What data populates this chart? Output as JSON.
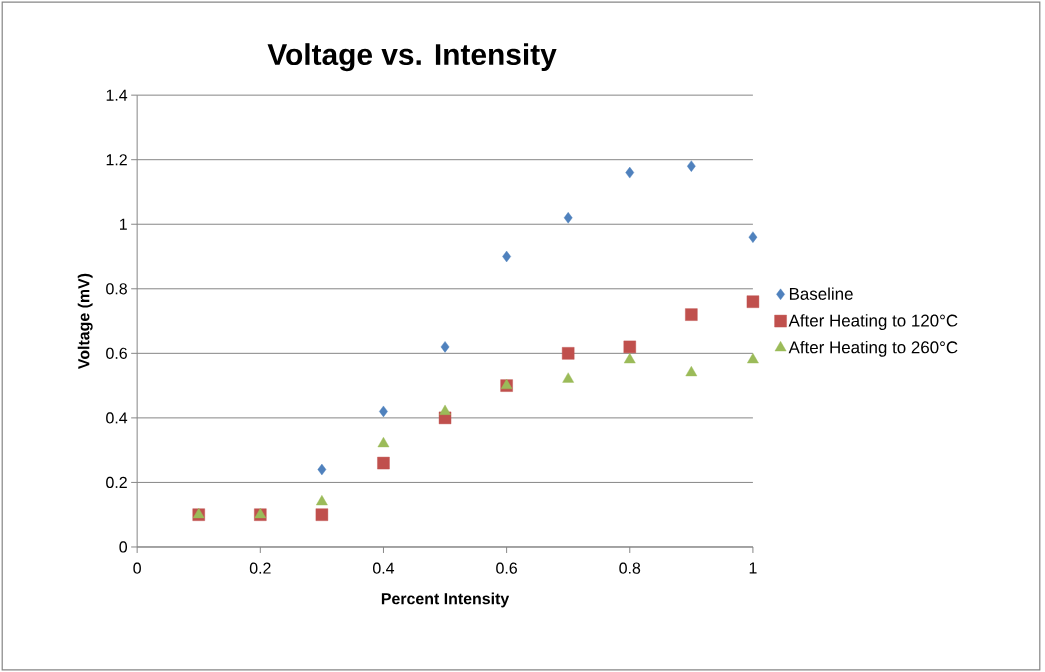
{
  "chart_data": {
    "type": "scatter",
    "title": "Voltage vs. Intensity",
    "xlabel": "Percent Intensity",
    "ylabel": "Voltage (mV)",
    "x": [
      0.1,
      0.2,
      0.3,
      0.4,
      0.5,
      0.6,
      0.7,
      0.8,
      0.9,
      1.0
    ],
    "series": [
      {
        "name": "Baseline",
        "color": "#4f81bd",
        "marker": "diamond",
        "values": [
          null,
          null,
          0.24,
          0.42,
          0.62,
          0.9,
          1.02,
          1.16,
          1.18,
          0.96
        ]
      },
      {
        "name": "After Heating to 120°C",
        "color": "#c0504d",
        "marker": "square",
        "values": [
          0.1,
          0.1,
          0.1,
          0.26,
          0.4,
          0.5,
          0.6,
          0.62,
          0.72,
          0.76
        ]
      },
      {
        "name": "After Heating to 260°C",
        "color": "#9bbb59",
        "marker": "triangle",
        "values": [
          0.1,
          0.1,
          0.14,
          0.32,
          0.42,
          0.5,
          0.52,
          0.58,
          0.54,
          0.58
        ]
      }
    ],
    "xlim": [
      0,
      1
    ],
    "xticks": [
      0,
      0.2,
      0.4,
      0.6,
      0.8,
      1
    ],
    "ylim": [
      0,
      1.4
    ],
    "yticks": [
      0,
      0.2,
      0.4,
      0.6,
      0.8,
      1,
      1.2,
      1.4
    ],
    "grid": "y",
    "legend": "right"
  }
}
